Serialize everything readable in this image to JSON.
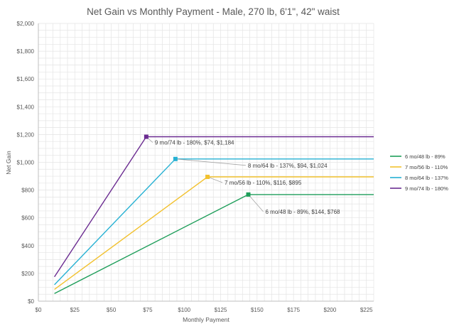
{
  "chart_data": {
    "type": "line",
    "title": "Net Gain vs Monthly Payment - Male, 270 lb, 6'1\", 42\" waist",
    "xlabel": "Monthly Payment",
    "ylabel": "Net Gain",
    "xlim": [
      0,
      230
    ],
    "ylim": [
      0,
      2000
    ],
    "x_ticks": [
      0,
      25,
      50,
      75,
      100,
      125,
      150,
      175,
      200,
      225
    ],
    "x_tick_labels": [
      "$0",
      "$25",
      "$50",
      "$75",
      "$100",
      "$125",
      "$150",
      "$175",
      "$200",
      "$225"
    ],
    "y_ticks": [
      0,
      200,
      400,
      600,
      800,
      1000,
      1200,
      1400,
      1600,
      1800,
      2000
    ],
    "y_tick_labels": [
      "$0",
      "$200",
      "$400",
      "$600",
      "$800",
      "$1,000",
      "$1,200",
      "$1,400",
      "$1,600",
      "$1,800",
      "$2,000"
    ],
    "grid": "on (both axes)",
    "legend_position": "right",
    "series": [
      {
        "name": "6 mo/48 lb - 89%",
        "color": "#1e9e5a",
        "x": [
          11,
          144,
          230
        ],
        "y": [
          55,
          768,
          768
        ],
        "annotation": {
          "x": 144,
          "y": 768,
          "label": "6 mo/48 lb - 89%, $144, $768"
        }
      },
      {
        "name": "7 mo/56 lb - 110%",
        "color": "#f2c12e",
        "x": [
          11,
          116,
          230
        ],
        "y": [
          85,
          895,
          895
        ],
        "annotation": {
          "x": 116,
          "y": 895,
          "label": "7 mo/56 lb - 110%, $116, $895"
        }
      },
      {
        "name": "8 mo/64 lb - 137%",
        "color": "#26b1d3",
        "x": [
          11,
          94,
          230
        ],
        "y": [
          118,
          1024,
          1024
        ],
        "annotation": {
          "x": 94,
          "y": 1024,
          "label": "8 mo/64 lb - 137%, $94, $1,024"
        }
      },
      {
        "name": "9 mo/74 lb - 180%",
        "color": "#6b2c91",
        "x": [
          11,
          74,
          230
        ],
        "y": [
          175,
          1184,
          1184
        ],
        "annotation": {
          "x": 74,
          "y": 1184,
          "label": "9 mo/74 lb - 180%, $74, $1,184"
        }
      }
    ]
  }
}
